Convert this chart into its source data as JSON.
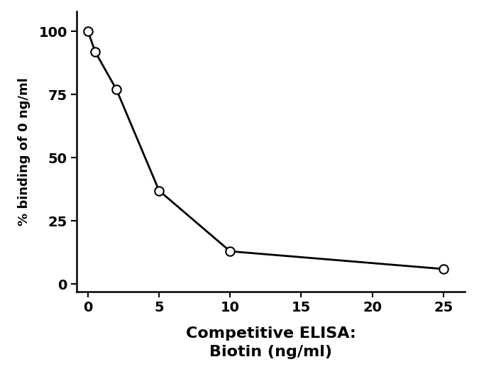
{
  "x": [
    0,
    0.5,
    2,
    5,
    10,
    25
  ],
  "y": [
    100,
    92,
    77,
    37,
    13,
    6
  ],
  "line_color": "#000000",
  "marker_facecolor": "#ffffff",
  "marker_edgecolor": "#000000",
  "marker_size": 9,
  "marker_linewidth": 1.5,
  "line_width": 2.0,
  "xlabel_line1": "Competitive ELISA:",
  "xlabel_line2": "Biotin (ng/ml)",
  "ylabel": "% binding of 0 ng/ml",
  "xlim": [
    -0.8,
    26.5
  ],
  "ylim": [
    -3,
    108
  ],
  "xticks": [
    0,
    5,
    10,
    15,
    20,
    25
  ],
  "yticks": [
    0,
    25,
    50,
    75,
    100
  ],
  "xlabel_fontsize": 16,
  "ylabel_fontsize": 13,
  "tick_fontsize": 14,
  "xlabel_fontweight": "bold",
  "ylabel_fontweight": "bold",
  "tick_fontweight": "bold",
  "background_color": "#ffffff",
  "font_family": "Arial"
}
